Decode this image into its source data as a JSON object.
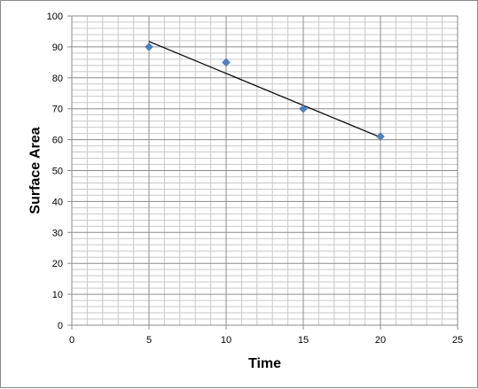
{
  "chart_data": {
    "type": "scatter",
    "title": "",
    "xlabel": "Time",
    "ylabel": "Surface Area",
    "xlim": [
      0,
      25
    ],
    "ylim": [
      0,
      100
    ],
    "x_ticks": [
      "0",
      "5",
      "10",
      "15",
      "20",
      "25"
    ],
    "y_ticks": [
      "0",
      "10",
      "20",
      "30",
      "40",
      "50",
      "60",
      "70",
      "80",
      "90",
      "100"
    ],
    "grid": true,
    "legend": "none",
    "series": [
      {
        "x": [
          5,
          10,
          15,
          20
        ],
        "y": [
          90,
          85,
          70,
          61
        ],
        "marker": "diamond",
        "color": "#4f81bd"
      }
    ],
    "trendline": {
      "type": "linear",
      "x": [
        5,
        20
      ],
      "y": [
        91.75,
        60.75
      ],
      "color": "#000000"
    }
  }
}
